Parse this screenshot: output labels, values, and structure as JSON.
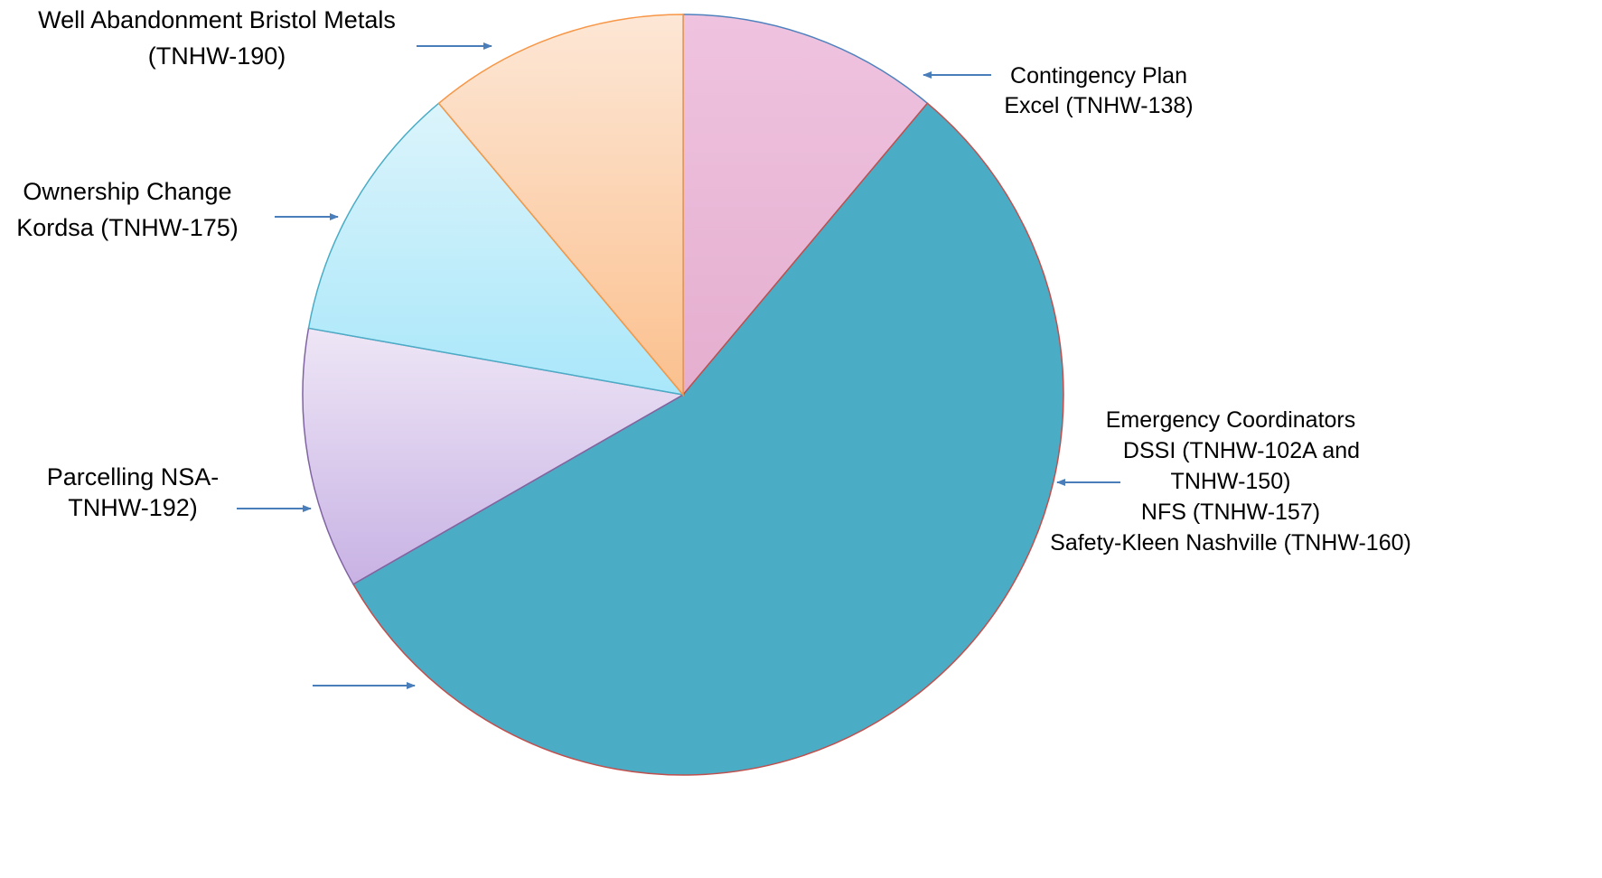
{
  "chart_data": {
    "type": "pie",
    "start_angle_deg": 0,
    "direction": "clockwise",
    "slices": [
      {
        "label_lines": [
          "Contingency Plan",
          "Excel (TNHW-138)"
        ],
        "value": 11.1,
        "colors": {
          "top": "#EFC3E0",
          "bottom": "#E5AECF"
        },
        "stroke": "#4F81BD"
      },
      {
        "label_lines": [
          "Emergency Coordinators",
          "DSSI (TNHW-102A and",
          "TNHW-150)",
          "NFS (TNHW-157)",
          "Safety-Kleen Nashville (TNHW-160)"
        ],
        "value": 55.6,
        "colors": {
          "top": "#4BACC6",
          "bottom": "#4BACC6"
        },
        "stroke": "#C0504D"
      },
      {
        "label_lines": [
          "Parcelling NSA-",
          "TNHW-192)"
        ],
        "value": 11.1,
        "colors": {
          "top": "#EEE6F6",
          "bottom": "#C8B2E4"
        },
        "stroke": "#8064A2"
      },
      {
        "label_lines": [
          "Ownership Change",
          "Kordsa (TNHW-175)"
        ],
        "value": 11.1,
        "colors": {
          "top": "#DCF4FB",
          "bottom": "#A9E7FA"
        },
        "stroke": "#4BACC6"
      },
      {
        "label_lines": [
          "Well Abandonment Bristol Metals",
          "(TNHW-190)"
        ],
        "value": 11.1,
        "colors": {
          "top": "#FDE7D6",
          "bottom": "#FBC08E"
        },
        "stroke": "#F79646"
      }
    ],
    "arrow_color": "#4A7EBB"
  }
}
